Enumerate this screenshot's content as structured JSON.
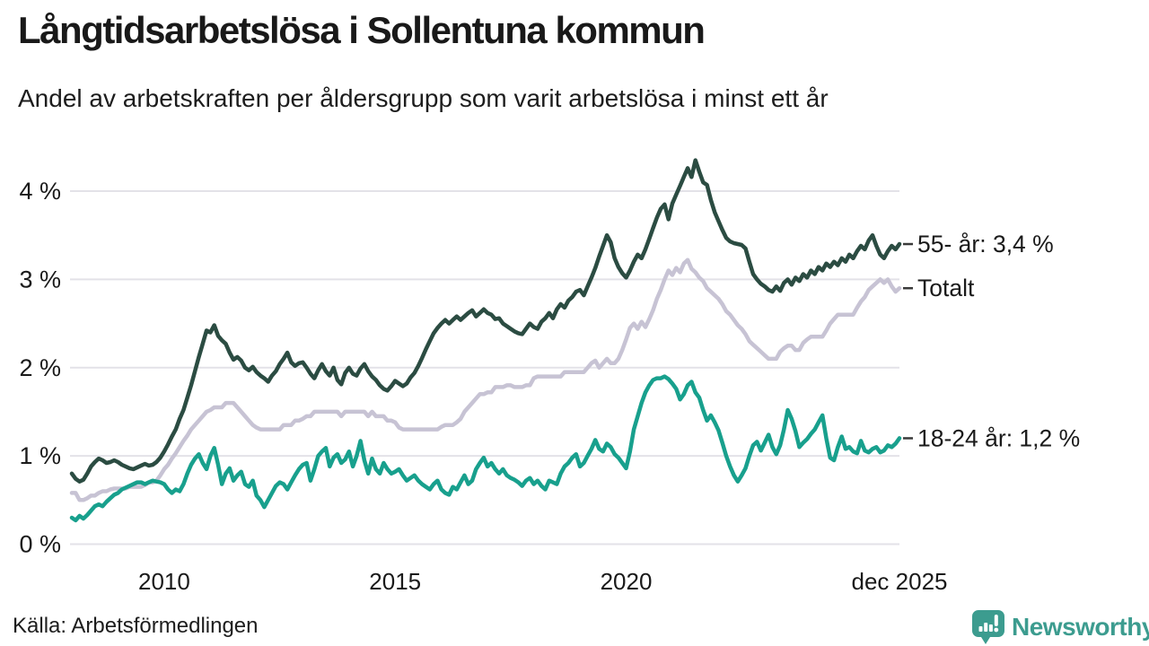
{
  "footer": {
    "source": "Källa: Arbetsförmedlingen",
    "brand": "Newsworthy"
  },
  "colors": {
    "text": "#1a1a1a",
    "grid": "#e3e2e8",
    "tick": "#3a3a3a",
    "brand": "#3c9c8f",
    "series_55": "#2b4c42",
    "series_total": "#c7c3d4",
    "series_youth": "#18a08d"
  },
  "chart_data": {
    "type": "line",
    "title": "Långtidsarbetslösa i Sollentuna kommun",
    "subtitle": "Andel av arbetskraften per åldersgrupp som varit arbetslösa i minst ett år",
    "grid": "horizontal-only",
    "legend_position": "end-of-line-labels",
    "x_axis": {
      "start": 2008.0,
      "step_years": 0.0833333,
      "range": [
        2008.0,
        2025.9167
      ],
      "ticks": [
        {
          "t": 2010,
          "label": "2010"
        },
        {
          "t": 2015,
          "label": "2015"
        },
        {
          "t": 2020,
          "label": "2020"
        },
        {
          "t": 2025.9167,
          "label": "dec 2025"
        }
      ]
    },
    "y_axis": {
      "unit": "%",
      "range": [
        0,
        4
      ],
      "ticks": [
        {
          "v": 0,
          "label": "0 %"
        },
        {
          "v": 1,
          "label": "1 %"
        },
        {
          "v": 2,
          "label": "2 %"
        },
        {
          "v": 3,
          "label": "3 %"
        },
        {
          "v": 4,
          "label": "4 %"
        }
      ]
    },
    "draw_order": [
      1,
      2,
      0
    ],
    "series": [
      {
        "id": "55-ar",
        "name": "55- år",
        "end_label": "55- år: 3,4 %",
        "end_value": "3,4 %",
        "color": "#2b4c42",
        "values": [
          0.8,
          0.74,
          0.71,
          0.73,
          0.8,
          0.88,
          0.93,
          0.97,
          0.95,
          0.92,
          0.93,
          0.95,
          0.93,
          0.9,
          0.88,
          0.86,
          0.85,
          0.87,
          0.89,
          0.91,
          0.89,
          0.9,
          0.93,
          0.98,
          1.05,
          1.13,
          1.22,
          1.3,
          1.42,
          1.52,
          1.66,
          1.8,
          1.96,
          2.12,
          2.27,
          2.42,
          2.4,
          2.48,
          2.36,
          2.31,
          2.27,
          2.17,
          2.09,
          2.12,
          2.08,
          2.0,
          1.97,
          2.01,
          1.95,
          1.91,
          1.88,
          1.84,
          1.91,
          1.96,
          2.04,
          2.1,
          2.17,
          2.06,
          2.02,
          2.05,
          2.06,
          2.0,
          1.93,
          1.88,
          1.97,
          2.04,
          1.96,
          1.91,
          2.0,
          1.86,
          1.81,
          1.94,
          2.0,
          1.93,
          1.91,
          1.99,
          2.04,
          1.96,
          1.9,
          1.86,
          1.8,
          1.76,
          1.74,
          1.79,
          1.85,
          1.82,
          1.79,
          1.82,
          1.89,
          1.94,
          2.02,
          2.11,
          2.21,
          2.3,
          2.39,
          2.45,
          2.5,
          2.54,
          2.5,
          2.54,
          2.58,
          2.54,
          2.58,
          2.62,
          2.65,
          2.58,
          2.62,
          2.66,
          2.62,
          2.6,
          2.55,
          2.56,
          2.5,
          2.47,
          2.44,
          2.41,
          2.39,
          2.38,
          2.44,
          2.5,
          2.46,
          2.44,
          2.52,
          2.56,
          2.62,
          2.56,
          2.66,
          2.72,
          2.68,
          2.76,
          2.8,
          2.86,
          2.88,
          2.82,
          2.92,
          3.02,
          3.13,
          3.26,
          3.38,
          3.5,
          3.42,
          3.24,
          3.14,
          3.07,
          3.02,
          3.1,
          3.2,
          3.28,
          3.24,
          3.34,
          3.46,
          3.58,
          3.7,
          3.8,
          3.85,
          3.68,
          3.86,
          3.96,
          4.06,
          4.16,
          4.26,
          4.16,
          4.35,
          4.22,
          4.1,
          4.07,
          3.9,
          3.76,
          3.66,
          3.56,
          3.47,
          3.43,
          3.41,
          3.4,
          3.39,
          3.35,
          3.2,
          3.06,
          3.0,
          2.95,
          2.92,
          2.88,
          2.86,
          2.92,
          2.87,
          2.96,
          3.0,
          2.94,
          3.02,
          2.98,
          3.06,
          3.02,
          3.1,
          3.06,
          3.14,
          3.1,
          3.18,
          3.14,
          3.2,
          3.16,
          3.24,
          3.2,
          3.28,
          3.24,
          3.32,
          3.38,
          3.34,
          3.44,
          3.5,
          3.38,
          3.28,
          3.24,
          3.32,
          3.38,
          3.34,
          3.4
        ]
      },
      {
        "id": "totalt",
        "name": "Totalt",
        "end_label": "Totalt",
        "end_value": "",
        "color": "#c7c3d4",
        "values": [
          0.58,
          0.58,
          0.5,
          0.5,
          0.52,
          0.55,
          0.55,
          0.58,
          0.6,
          0.6,
          0.62,
          0.63,
          0.63,
          0.63,
          0.63,
          0.65,
          0.65,
          0.65,
          0.65,
          0.67,
          0.7,
          0.7,
          0.72,
          0.78,
          0.85,
          0.9,
          0.97,
          1.03,
          1.1,
          1.17,
          1.23,
          1.3,
          1.35,
          1.4,
          1.45,
          1.5,
          1.52,
          1.55,
          1.55,
          1.55,
          1.6,
          1.6,
          1.6,
          1.55,
          1.5,
          1.45,
          1.4,
          1.35,
          1.32,
          1.3,
          1.3,
          1.3,
          1.3,
          1.3,
          1.3,
          1.35,
          1.35,
          1.35,
          1.4,
          1.4,
          1.42,
          1.45,
          1.45,
          1.5,
          1.5,
          1.5,
          1.5,
          1.5,
          1.5,
          1.5,
          1.45,
          1.5,
          1.5,
          1.5,
          1.5,
          1.5,
          1.5,
          1.45,
          1.5,
          1.45,
          1.45,
          1.45,
          1.4,
          1.4,
          1.38,
          1.32,
          1.3,
          1.3,
          1.3,
          1.3,
          1.3,
          1.3,
          1.3,
          1.3,
          1.3,
          1.3,
          1.33,
          1.35,
          1.35,
          1.35,
          1.38,
          1.42,
          1.5,
          1.55,
          1.6,
          1.65,
          1.7,
          1.7,
          1.72,
          1.72,
          1.78,
          1.78,
          1.78,
          1.8,
          1.8,
          1.78,
          1.78,
          1.78,
          1.8,
          1.8,
          1.88,
          1.9,
          1.9,
          1.9,
          1.9,
          1.9,
          1.9,
          1.9,
          1.95,
          1.95,
          1.95,
          1.95,
          1.95,
          1.95,
          2.0,
          2.05,
          2.08,
          2.0,
          2.05,
          2.1,
          2.05,
          2.05,
          2.1,
          2.2,
          2.32,
          2.45,
          2.5,
          2.44,
          2.52,
          2.46,
          2.55,
          2.65,
          2.78,
          2.88,
          3.0,
          3.1,
          3.05,
          3.13,
          3.08,
          3.18,
          3.22,
          3.12,
          3.08,
          3.02,
          2.98,
          2.9,
          2.86,
          2.82,
          2.78,
          2.72,
          2.64,
          2.6,
          2.54,
          2.48,
          2.44,
          2.38,
          2.3,
          2.26,
          2.22,
          2.18,
          2.14,
          2.1,
          2.1,
          2.1,
          2.18,
          2.22,
          2.25,
          2.25,
          2.2,
          2.2,
          2.28,
          2.32,
          2.35,
          2.35,
          2.35,
          2.35,
          2.42,
          2.5,
          2.55,
          2.6,
          2.6,
          2.6,
          2.6,
          2.6,
          2.68,
          2.75,
          2.8,
          2.88,
          2.92,
          2.96,
          3.0,
          2.96,
          3.0,
          2.92,
          2.86,
          2.9
        ]
      },
      {
        "id": "18-24-ar",
        "name": "18-24 år",
        "end_label": "18-24 år: 1,2 %",
        "end_value": "1,2 %",
        "color": "#18a08d",
        "values": [
          0.3,
          0.27,
          0.32,
          0.29,
          0.33,
          0.38,
          0.43,
          0.45,
          0.43,
          0.48,
          0.52,
          0.56,
          0.58,
          0.62,
          0.64,
          0.66,
          0.68,
          0.7,
          0.7,
          0.68,
          0.7,
          0.72,
          0.71,
          0.7,
          0.68,
          0.62,
          0.58,
          0.62,
          0.6,
          0.68,
          0.8,
          0.9,
          0.97,
          1.02,
          0.92,
          0.85,
          1.0,
          1.09,
          0.9,
          0.68,
          0.8,
          0.86,
          0.72,
          0.78,
          0.82,
          0.68,
          0.65,
          0.72,
          0.55,
          0.5,
          0.42,
          0.5,
          0.58,
          0.66,
          0.7,
          0.68,
          0.62,
          0.7,
          0.78,
          0.85,
          0.9,
          0.92,
          0.72,
          0.85,
          1.0,
          1.05,
          1.09,
          0.88,
          0.98,
          1.02,
          0.92,
          0.96,
          1.05,
          0.88,
          1.0,
          1.17,
          0.95,
          0.8,
          0.97,
          0.85,
          0.8,
          0.92,
          0.85,
          0.8,
          0.82,
          0.85,
          0.78,
          0.72,
          0.75,
          0.78,
          0.72,
          0.68,
          0.65,
          0.62,
          0.68,
          0.72,
          0.62,
          0.58,
          0.56,
          0.65,
          0.62,
          0.7,
          0.78,
          0.68,
          0.72,
          0.85,
          0.92,
          0.98,
          0.88,
          0.92,
          0.85,
          0.8,
          0.85,
          0.78,
          0.75,
          0.73,
          0.7,
          0.66,
          0.72,
          0.75,
          0.68,
          0.72,
          0.66,
          0.62,
          0.72,
          0.7,
          0.68,
          0.8,
          0.88,
          0.92,
          0.98,
          1.02,
          0.88,
          0.92,
          1.0,
          1.08,
          1.18,
          1.08,
          1.05,
          1.14,
          1.1,
          1.02,
          0.98,
          0.92,
          0.86,
          1.05,
          1.3,
          1.45,
          1.6,
          1.72,
          1.8,
          1.86,
          1.88,
          1.88,
          1.9,
          1.87,
          1.82,
          1.76,
          1.64,
          1.7,
          1.8,
          1.84,
          1.72,
          1.66,
          1.52,
          1.4,
          1.46,
          1.38,
          1.29,
          1.15,
          1.0,
          0.88,
          0.78,
          0.71,
          0.78,
          0.86,
          1.0,
          1.12,
          1.16,
          1.06,
          1.15,
          1.24,
          1.1,
          1.02,
          1.12,
          1.3,
          1.52,
          1.42,
          1.28,
          1.1,
          1.15,
          1.19,
          1.25,
          1.3,
          1.38,
          1.46,
          1.2,
          0.98,
          0.95,
          1.1,
          1.22,
          1.08,
          1.1,
          1.05,
          1.03,
          1.17,
          1.06,
          1.04,
          1.08,
          1.1,
          1.04,
          1.06,
          1.12,
          1.1,
          1.14,
          1.2
        ]
      }
    ]
  }
}
